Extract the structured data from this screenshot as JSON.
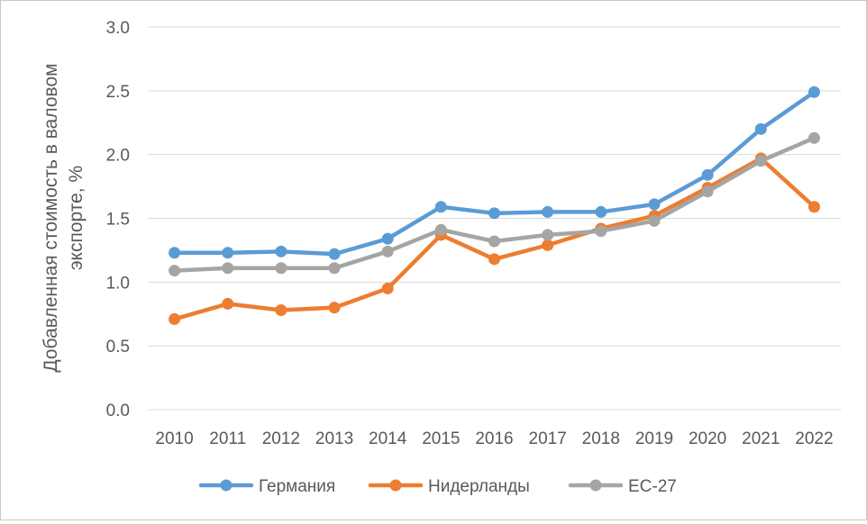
{
  "chart_data": {
    "type": "line",
    "title": "",
    "xlabel": "",
    "ylabel_lines": [
      "Добавленная стоимость в валовом",
      "экспорте, %"
    ],
    "categories": [
      "2010",
      "2011",
      "2012",
      "2013",
      "2014",
      "2015",
      "2016",
      "2017",
      "2018",
      "2019",
      "2020",
      "2021",
      "2022"
    ],
    "ylim": [
      0,
      3
    ],
    "yticks": [
      "0.0",
      "0.5",
      "1.0",
      "1.5",
      "2.0",
      "2.5",
      "3.0"
    ],
    "grid": true,
    "legend_position": "bottom",
    "series": [
      {
        "name": "Германия",
        "color": "#5b9bd5",
        "values": [
          1.23,
          1.23,
          1.24,
          1.22,
          1.34,
          1.59,
          1.54,
          1.55,
          1.55,
          1.61,
          1.84,
          2.2,
          2.49
        ]
      },
      {
        "name": "Нидерланды",
        "color": "#ed7d31",
        "values": [
          0.71,
          0.83,
          0.78,
          0.8,
          0.95,
          1.37,
          1.18,
          1.29,
          1.42,
          1.52,
          1.74,
          1.97,
          1.59
        ]
      },
      {
        "name": "ЕС-27",
        "color": "#a5a5a5",
        "values": [
          1.09,
          1.11,
          1.11,
          1.11,
          1.24,
          1.41,
          1.32,
          1.37,
          1.4,
          1.48,
          1.71,
          1.95,
          2.13
        ]
      }
    ]
  }
}
